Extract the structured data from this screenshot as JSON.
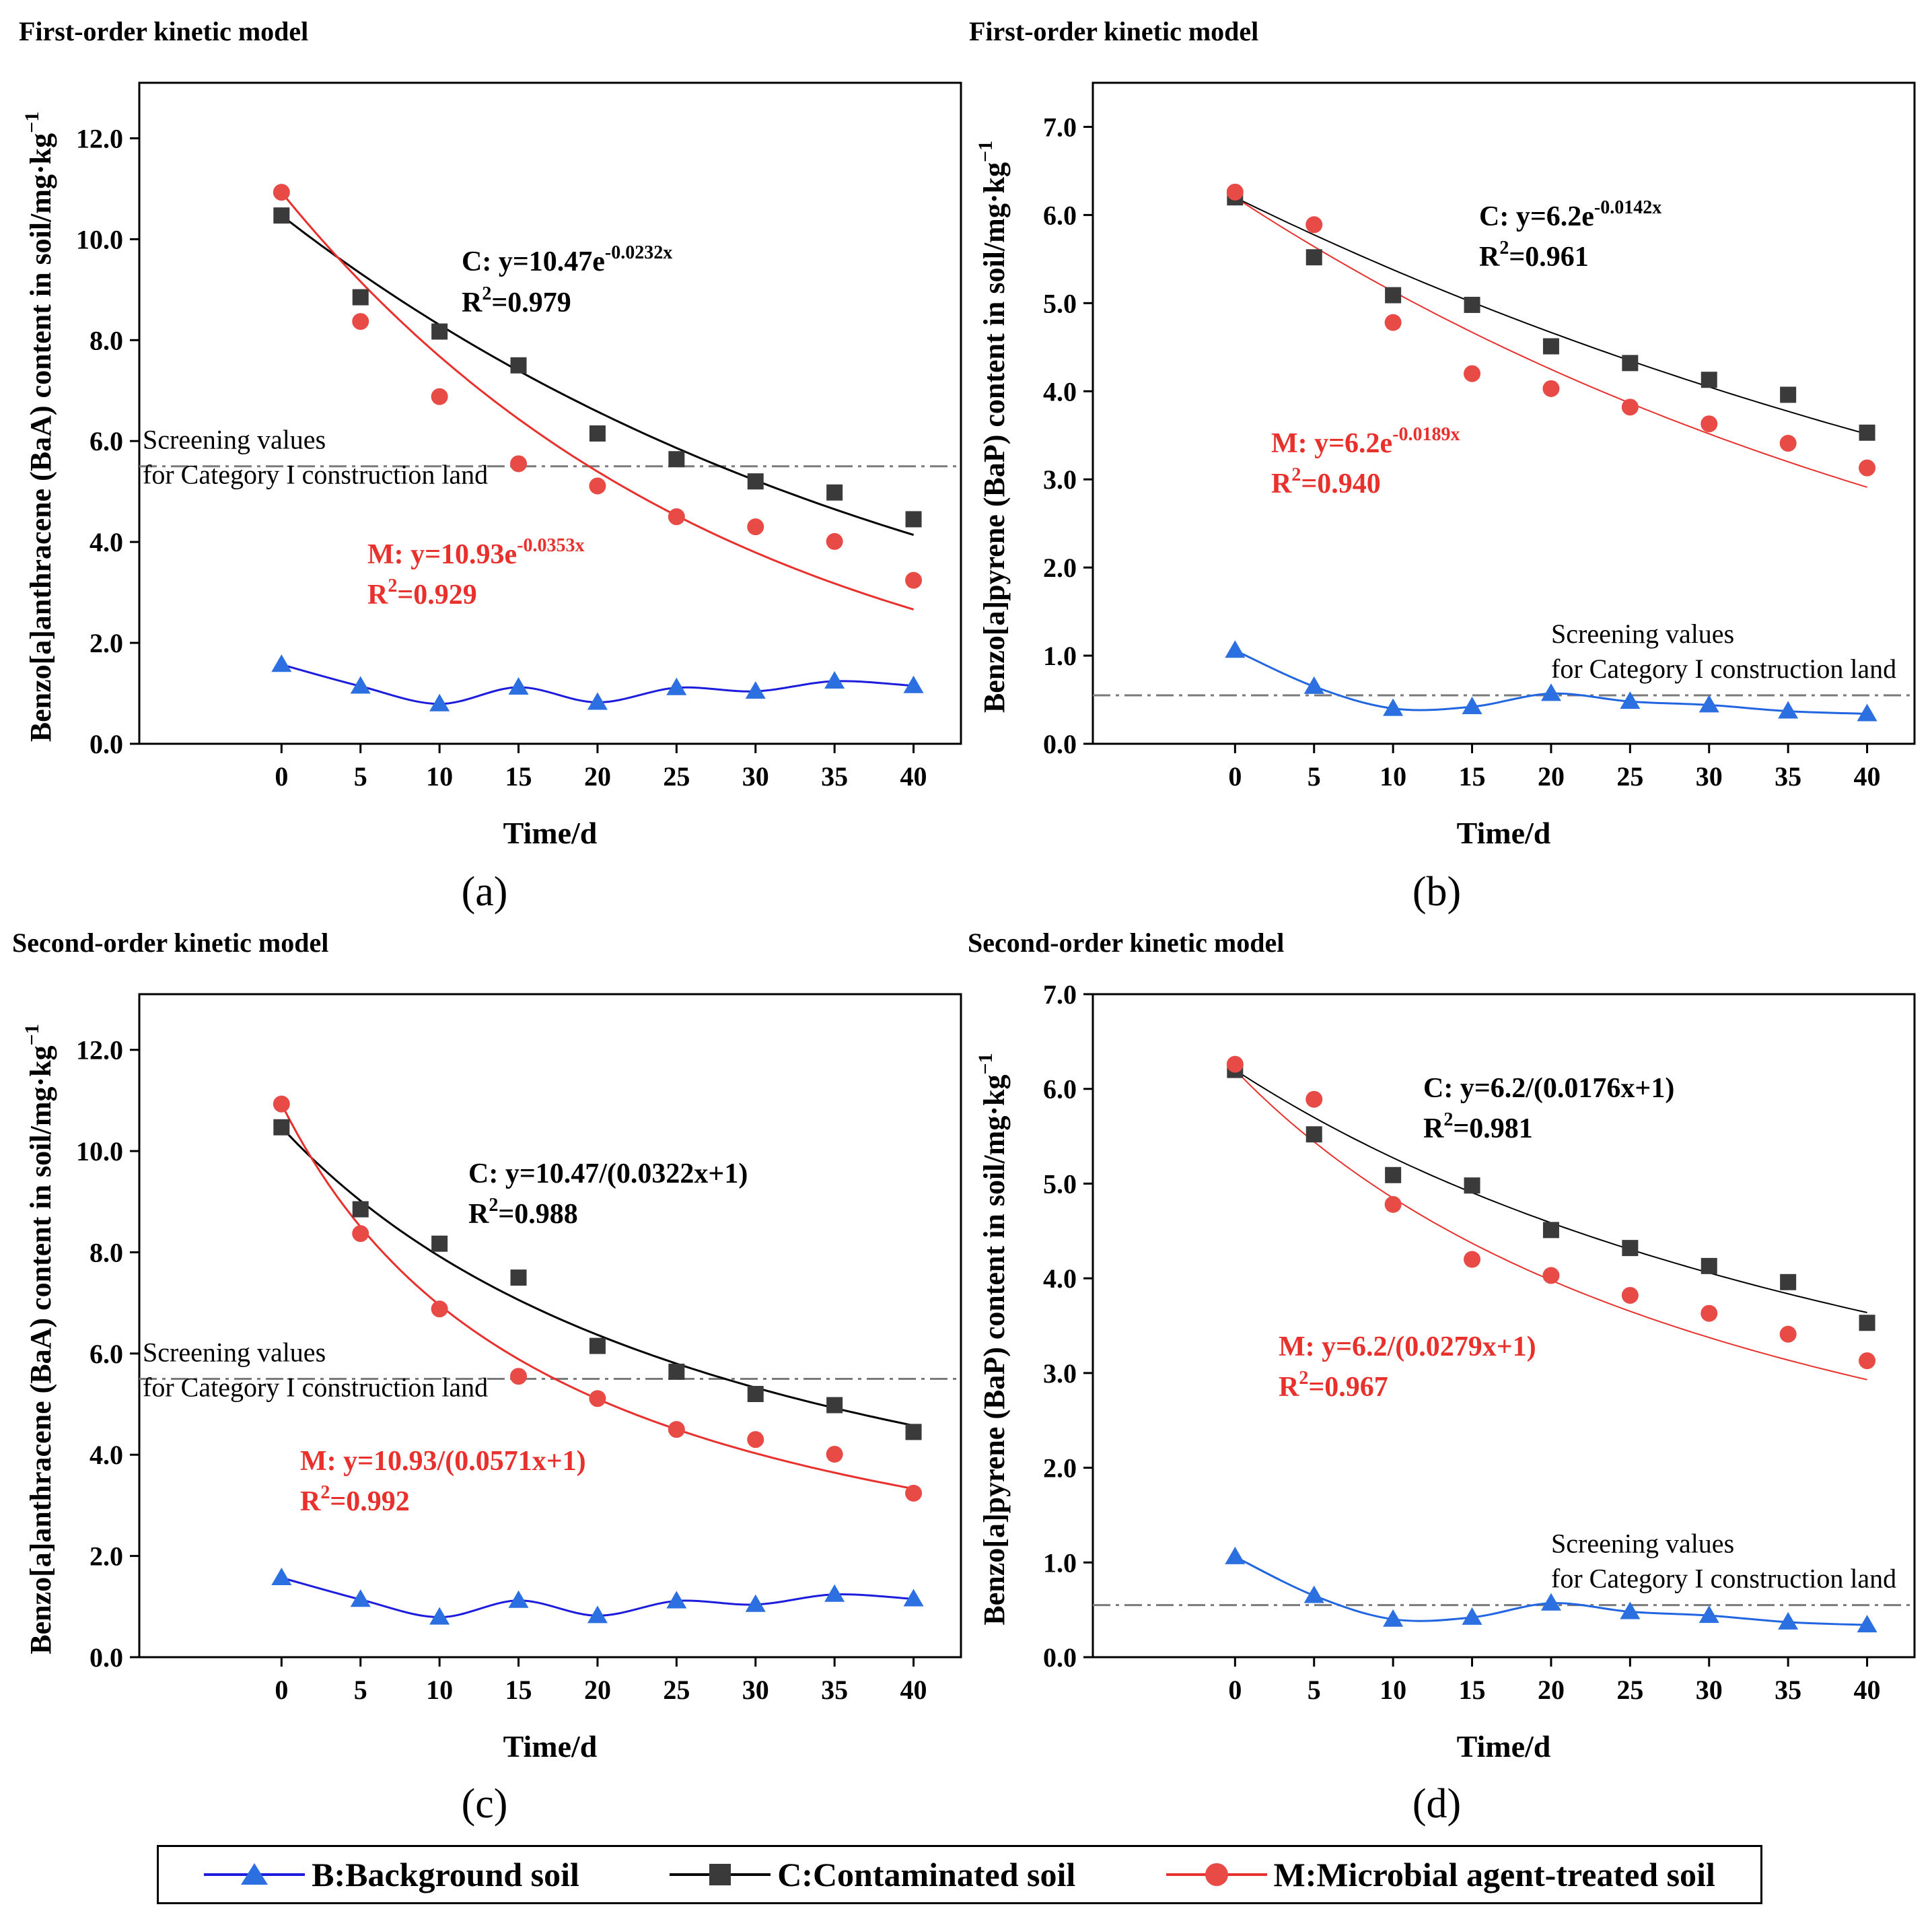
{
  "figure_caption_labels": [
    "(a)",
    "(b)",
    "(c)",
    "(d)"
  ],
  "legend": {
    "background": "B:Background soil",
    "contaminated": "C:Contaminated soil",
    "microbial": "M:Microbial agent-treated soil"
  },
  "colors": {
    "background_first": "#1c1cdc",
    "background_second_baa": "#1c1cdc",
    "background_bap": "#2166e0",
    "marker_blue": "#2c6fe0",
    "contaminated_marker": "#3a3a3a",
    "contaminated_line": "#000000",
    "microbial": "#e8302c",
    "microbial_marker": "#e84a46",
    "screening_line": "#7a7a7a"
  },
  "chart_data": [
    {
      "id": "a",
      "type": "scatter",
      "title": "First-order kinetic model",
      "xlabel": "Time/d",
      "ylabel": "Benzo[a]anthracene (BaA) content in soil/mg·kg",
      "ylabel_sup": "−1",
      "xlim": [
        -9,
        43
      ],
      "ylim": [
        0,
        13.1
      ],
      "xticks": [
        0,
        5,
        10,
        15,
        20,
        25,
        30,
        35,
        40
      ],
      "yticks": [
        0,
        2,
        4,
        6,
        8,
        10,
        12
      ],
      "ytick_labels": [
        "0.0",
        "2.0",
        "4.0",
        "6.0",
        "8.0",
        "10.0",
        "12.0"
      ],
      "screening": {
        "value": 5.5,
        "label1": "Screening values",
        "label2": "for Category I construction land",
        "label_pos": "left"
      },
      "x": [
        0,
        5,
        10,
        15,
        20,
        25,
        30,
        35,
        40
      ],
      "series": [
        {
          "name": "B",
          "values": [
            1.57,
            1.14,
            0.79,
            1.12,
            0.82,
            1.11,
            1.04,
            1.24,
            1.15
          ]
        },
        {
          "name": "C",
          "values": [
            10.47,
            8.85,
            8.17,
            7.5,
            6.15,
            5.64,
            5.2,
            4.98,
            4.45
          ]
        },
        {
          "name": "M",
          "values": [
            10.93,
            8.37,
            6.88,
            5.55,
            5.11,
            4.5,
            4.3,
            4.01,
            3.24
          ]
        }
      ],
      "fits": [
        {
          "name": "C",
          "model": "first",
          "a": 10.47,
          "k": 0.0232
        },
        {
          "name": "M",
          "model": "first",
          "a": 10.93,
          "k": 0.0353
        }
      ],
      "eq_C": {
        "prefix": "C: y=10.47e",
        "sup": "-0.0232x",
        "r2": "=0.979"
      },
      "eq_M": {
        "prefix": "M: y=10.93e",
        "sup": "-0.0353x",
        "r2": "=0.929"
      }
    },
    {
      "id": "b",
      "type": "scatter",
      "title": "First-order kinetic model",
      "xlabel": "Time/d",
      "ylabel": "Benzo[a]pyrene (BaP) content in soil/mg·kg",
      "ylabel_sup": "−1",
      "xlim": [
        -9,
        43
      ],
      "ylim": [
        0,
        7.5
      ],
      "xticks": [
        0,
        5,
        10,
        15,
        20,
        25,
        30,
        35,
        40
      ],
      "yticks": [
        0,
        1,
        2,
        3,
        4,
        5,
        6,
        7
      ],
      "ytick_labels": [
        "0.0",
        "1.0",
        "2.0",
        "3.0",
        "4.0",
        "5.0",
        "6.0",
        "7.0"
      ],
      "screening": {
        "value": 0.55,
        "label1": "Screening values",
        "label2": "for Category I construction land",
        "label_pos": "right"
      },
      "x": [
        0,
        5,
        10,
        15,
        20,
        25,
        30,
        35,
        40
      ],
      "series": [
        {
          "name": "B",
          "values": [
            1.06,
            0.65,
            0.4,
            0.42,
            0.57,
            0.48,
            0.44,
            0.37,
            0.34
          ]
        },
        {
          "name": "C",
          "values": [
            6.2,
            5.52,
            5.09,
            4.98,
            4.51,
            4.32,
            4.13,
            3.96,
            3.53
          ]
        },
        {
          "name": "M",
          "values": [
            6.26,
            5.89,
            4.78,
            4.2,
            4.03,
            3.82,
            3.63,
            3.41,
            3.13
          ]
        }
      ],
      "fits": [
        {
          "name": "C",
          "model": "first",
          "a": 6.2,
          "k": 0.0142
        },
        {
          "name": "M",
          "model": "first",
          "a": 6.2,
          "k": 0.0189
        }
      ],
      "eq_C": {
        "prefix": "C: y=6.2e",
        "sup": "-0.0142x",
        "r2": "=0.961"
      },
      "eq_M": {
        "prefix": "M: y=6.2e",
        "sup": "-0.0189x",
        "r2": "=0.940"
      }
    },
    {
      "id": "c",
      "type": "scatter",
      "title": "Second-order kinetic model",
      "xlabel": "Time/d",
      "ylabel": "Benzo[a]anthracene (BaA) content in soil/mg·kg",
      "ylabel_sup": "−1",
      "xlim": [
        -9,
        43
      ],
      "ylim": [
        0,
        13.1
      ],
      "xticks": [
        0,
        5,
        10,
        15,
        20,
        25,
        30,
        35,
        40
      ],
      "yticks": [
        0,
        2,
        4,
        6,
        8,
        10,
        12
      ],
      "ytick_labels": [
        "0.0",
        "2.0",
        "4.0",
        "6.0",
        "8.0",
        "10.0",
        "12.0"
      ],
      "screening": {
        "value": 5.5,
        "label1": "Screening values",
        "label2": "for Category I construction land",
        "label_pos": "left"
      },
      "x": [
        0,
        5,
        10,
        15,
        20,
        25,
        30,
        35,
        40
      ],
      "series": [
        {
          "name": "B",
          "values": [
            1.57,
            1.14,
            0.79,
            1.12,
            0.82,
            1.11,
            1.04,
            1.24,
            1.15
          ]
        },
        {
          "name": "C",
          "values": [
            10.47,
            8.85,
            8.17,
            7.5,
            6.15,
            5.64,
            5.2,
            4.98,
            4.45
          ]
        },
        {
          "name": "M",
          "values": [
            10.93,
            8.37,
            6.88,
            5.55,
            5.11,
            4.5,
            4.3,
            4.01,
            3.24
          ]
        }
      ],
      "fits": [
        {
          "name": "C",
          "model": "second",
          "a": 10.47,
          "k": 0.0322
        },
        {
          "name": "M",
          "model": "second",
          "a": 10.93,
          "k": 0.0571
        }
      ],
      "eq_C": {
        "prefix": "C: y=10.47/(0.0322x+1)",
        "sup": "",
        "r2": "=0.988"
      },
      "eq_M": {
        "prefix": "M: y=10.93/(0.0571x+1)",
        "sup": "",
        "r2": "=0.992"
      }
    },
    {
      "id": "d",
      "type": "scatter",
      "title": "Second-order kinetic model",
      "xlabel": "Time/d",
      "ylabel": "Benzo[a]pyrene (BaP) content in soil/mg·kg",
      "ylabel_sup": "−1",
      "xlim": [
        -9,
        43
      ],
      "ylim": [
        0,
        7.0
      ],
      "xticks": [
        0,
        5,
        10,
        15,
        20,
        25,
        30,
        35,
        40
      ],
      "yticks": [
        0,
        1,
        2,
        3,
        4,
        5,
        6,
        7
      ],
      "ytick_labels": [
        "0.0",
        "1.0",
        "2.0",
        "3.0",
        "4.0",
        "5.0",
        "6.0",
        "7.0"
      ],
      "screening": {
        "value": 0.55,
        "label1": "Screening values",
        "label2": "for Category I construction land",
        "label_pos": "right"
      },
      "x": [
        0,
        5,
        10,
        15,
        20,
        25,
        30,
        35,
        40
      ],
      "series": [
        {
          "name": "B",
          "values": [
            1.06,
            0.65,
            0.4,
            0.42,
            0.57,
            0.48,
            0.44,
            0.37,
            0.34
          ]
        },
        {
          "name": "C",
          "values": [
            6.2,
            5.52,
            5.09,
            4.98,
            4.51,
            4.32,
            4.13,
            3.96,
            3.53
          ]
        },
        {
          "name": "M",
          "values": [
            6.26,
            5.89,
            4.78,
            4.2,
            4.03,
            3.82,
            3.63,
            3.41,
            3.13
          ]
        }
      ],
      "fits": [
        {
          "name": "C",
          "model": "second",
          "a": 6.2,
          "k": 0.0176
        },
        {
          "name": "M",
          "model": "second",
          "a": 6.2,
          "k": 0.0279
        }
      ],
      "eq_C": {
        "prefix": "C: y=6.2/(0.0176x+1)",
        "sup": "",
        "r2": "=0.981"
      },
      "eq_M": {
        "prefix": "M: y=6.2/(0.0279x+1)",
        "sup": "",
        "r2": "=0.967"
      }
    }
  ]
}
